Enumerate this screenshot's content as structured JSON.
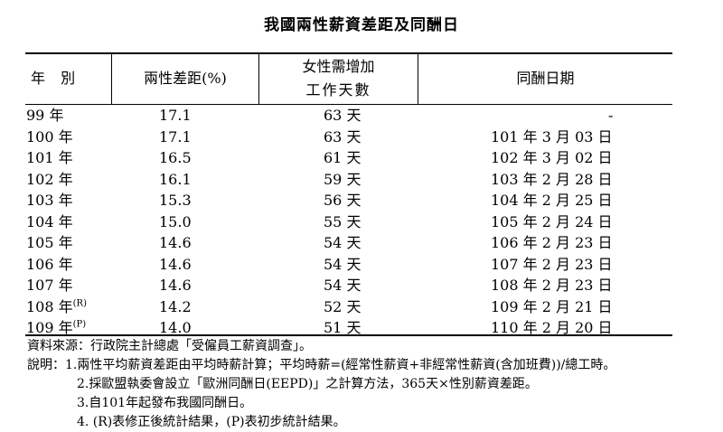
{
  "title": "我國兩性薪資差距及同酬日",
  "headers": {
    "year": "年 別",
    "gap": "兩性差距(%)",
    "days_line1": "女性需增加",
    "days_line2": "工作天數",
    "date": "同酬日期"
  },
  "rows": [
    {
      "year": "99 年",
      "sup": "",
      "gap": "17.1",
      "days": "63 天",
      "date": "-"
    },
    {
      "year": "100 年",
      "sup": "",
      "gap": "17.1",
      "days": "63 天",
      "date": "101 年 3 月 03 日"
    },
    {
      "year": "101 年",
      "sup": "",
      "gap": "16.5",
      "days": "61 天",
      "date": "102 年 3 月 02 日"
    },
    {
      "year": "102 年",
      "sup": "",
      "gap": "16.1",
      "days": "59 天",
      "date": "103 年 2 月 28 日"
    },
    {
      "year": "103 年",
      "sup": "",
      "gap": "15.3",
      "days": "56 天",
      "date": "104 年 2 月 25 日"
    },
    {
      "year": "104 年",
      "sup": "",
      "gap": "15.0",
      "days": "55 天",
      "date": "105 年 2 月 24 日"
    },
    {
      "year": "105 年",
      "sup": "",
      "gap": "14.6",
      "days": "54 天",
      "date": "106 年 2 月 23 日"
    },
    {
      "year": "106 年",
      "sup": "",
      "gap": "14.6",
      "days": "54 天",
      "date": "107 年 2 月 23 日"
    },
    {
      "year": "107 年",
      "sup": "",
      "gap": "14.6",
      "days": "54 天",
      "date": "108 年 2 月 23 日"
    },
    {
      "year": "108 年",
      "sup": "(R)",
      "gap": "14.2",
      "days": "52 天",
      "date": "109 年 2 月 21 日"
    },
    {
      "year": "109 年",
      "sup": "(P)",
      "gap": "14.0",
      "days": "51 天",
      "date": "110 年 2 月 20 日"
    }
  ],
  "notes": {
    "source": "資料來源：行政院主計總處「受僱員工薪資調查」。",
    "n1": "說明：1.兩性平均薪資差距由平均時薪計算；平均時薪=(經常性薪資+非經常性薪資(含加班費))/總工時。",
    "n2": "2.採歐盟執委會設立「歐洲同酬日(EEPD)」之計算方法，365天×性別薪資差距。",
    "n3": "3.自101年起發布我國同酬日。",
    "n4": "4. (R)表修正後統計結果，(P)表初步統計結果。"
  }
}
